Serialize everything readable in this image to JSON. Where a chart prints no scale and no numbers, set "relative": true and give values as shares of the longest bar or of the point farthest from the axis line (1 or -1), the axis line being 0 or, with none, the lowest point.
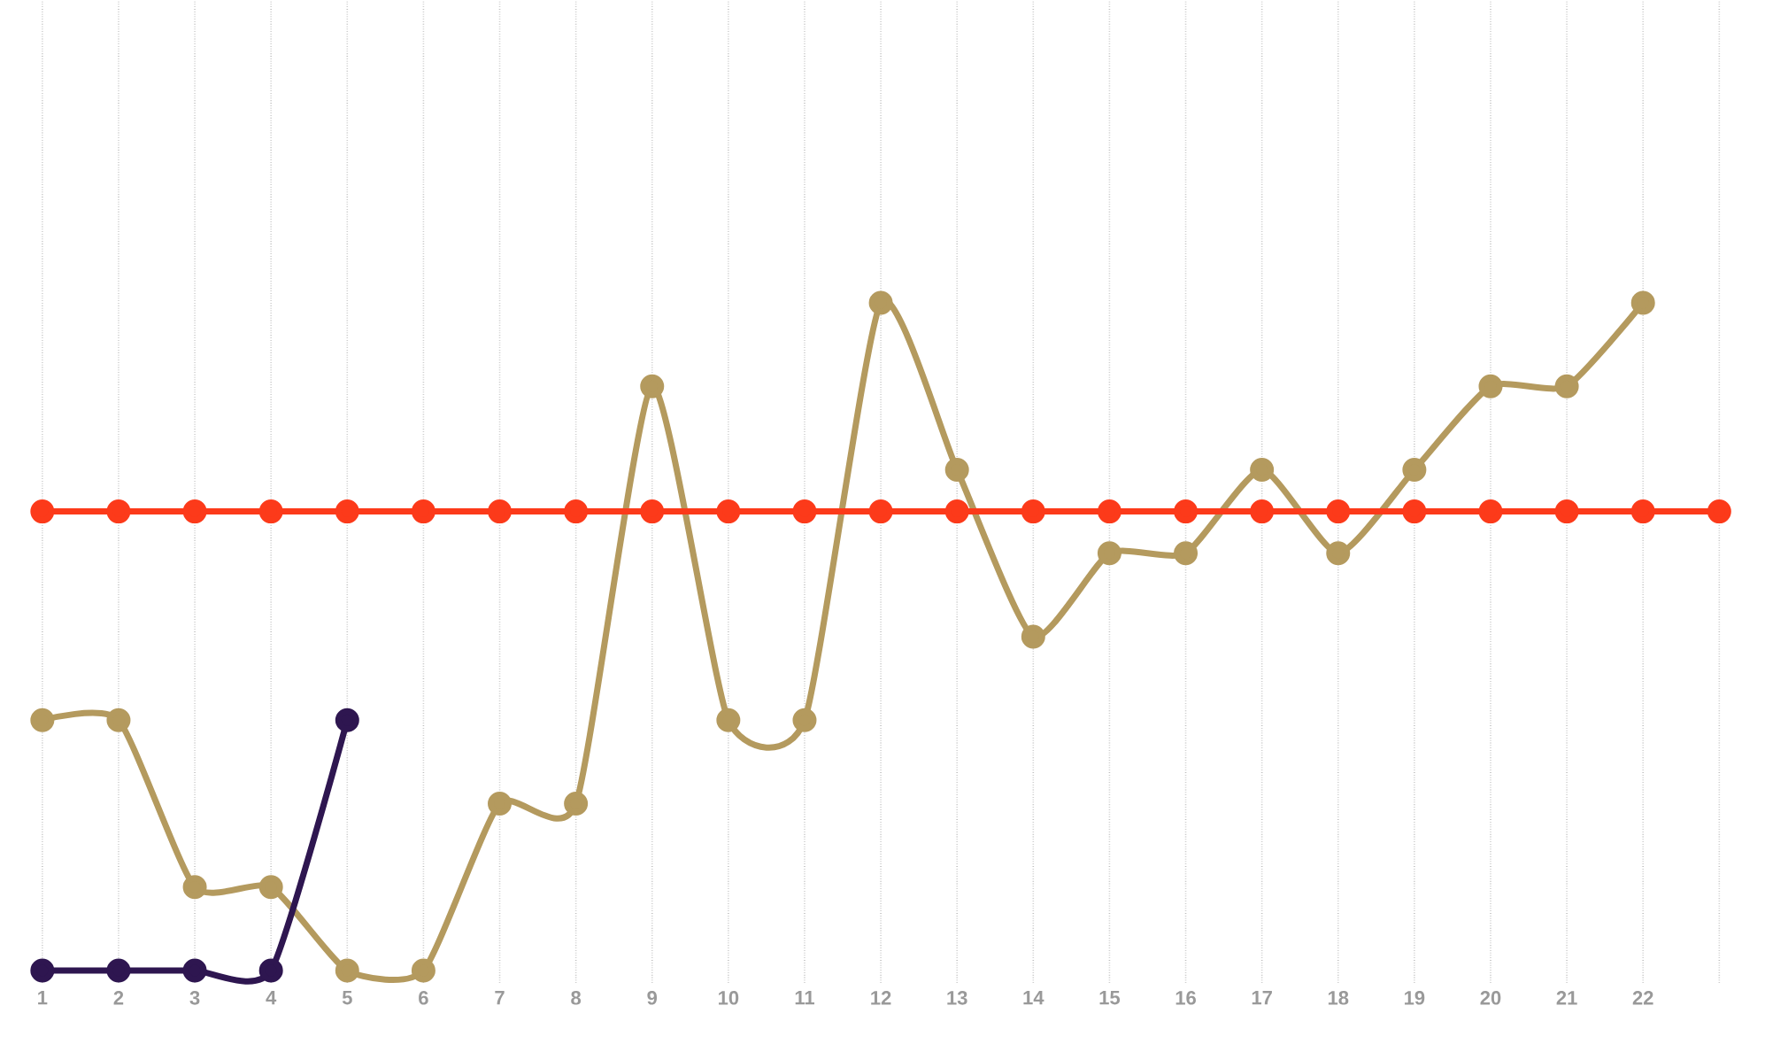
{
  "chart_data": {
    "type": "line",
    "relative": true,
    "grid": "x",
    "marker": "circle",
    "line_style": "solid",
    "categories": [
      "1",
      "2",
      "3",
      "4",
      "5",
      "6",
      "7",
      "8",
      "9",
      "10",
      "11",
      "12",
      "13",
      "14",
      "15",
      "16",
      "17",
      "18",
      "19",
      "20",
      "21",
      "22",
      null
    ],
    "series": [
      {
        "color": "#b49a5e",
        "values": [
          0.375,
          0.375,
          0.125,
          0.125,
          0,
          0,
          0.25,
          0.25,
          0.875,
          0.375,
          0.375,
          1,
          0.75,
          0.5,
          0.625,
          0.625,
          0.75,
          0.625,
          0.75,
          0.875,
          0.875,
          1,
          null
        ]
      },
      {
        "color": "#2e1650",
        "values": [
          0,
          0,
          0,
          0,
          0.375,
          null,
          null,
          null,
          null,
          null,
          null,
          null,
          null,
          null,
          null,
          null,
          null,
          null,
          null,
          null,
          null,
          null,
          null
        ]
      },
      {
        "color": "#fc3a1a",
        "values": [
          0.6875,
          0.6875,
          0.6875,
          0.6875,
          0.6875,
          0.6875,
          0.6875,
          0.6875,
          0.6875,
          0.6875,
          0.6875,
          0.6875,
          0.6875,
          0.6875,
          0.6875,
          0.6875,
          0.6875,
          0.6875,
          0.6875,
          0.6875,
          0.6875,
          0.6875,
          0.6875
        ]
      }
    ]
  }
}
